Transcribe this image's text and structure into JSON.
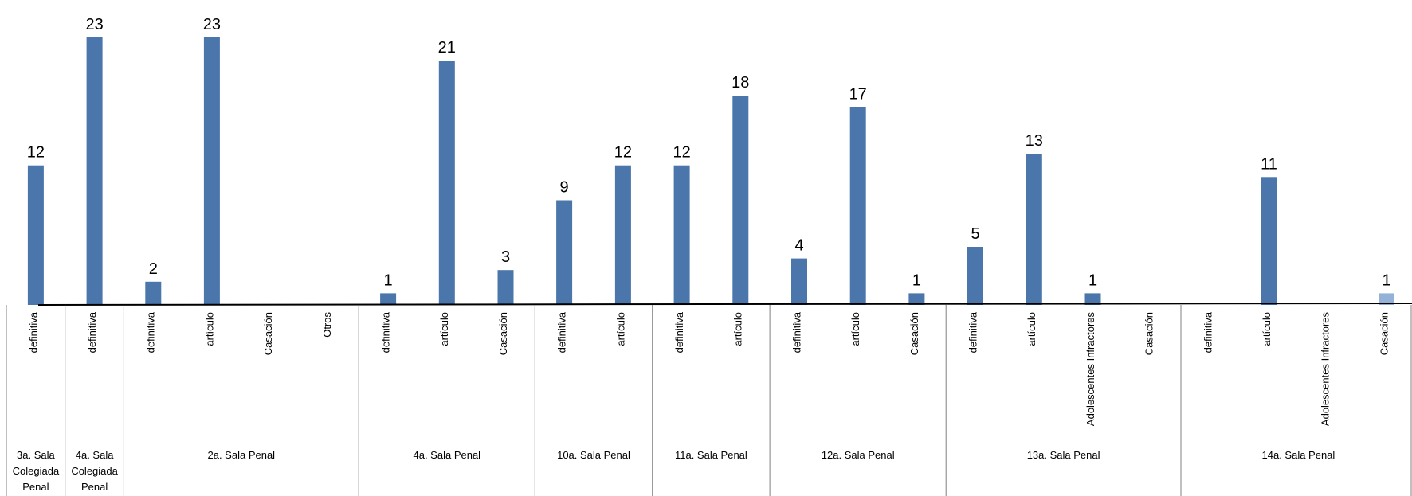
{
  "chart_data": {
    "type": "bar",
    "title": "",
    "xlabel": "",
    "ylabel": "",
    "ylim": [
      0,
      23
    ],
    "grid": false,
    "legend": "none",
    "colors": {
      "bar": "#4a76ab",
      "bar_highlight": "#94b1d8",
      "axis": "#000000",
      "divider": "#808080"
    },
    "categories": [
      "definitiva",
      "definitiva",
      "definitiva",
      "artículo",
      "Casación",
      "Otros",
      "definitiva",
      "artículo",
      "Casación",
      "definitiva",
      "artículo",
      "definitiva",
      "artículo",
      "definitiva",
      "artículo",
      "Casación",
      "definitiva",
      "artículo",
      "Adolescentes Infractores",
      "Casación",
      "definitiva",
      "artículo",
      "Adolescentes Infractores",
      "Casación"
    ],
    "values": [
      12,
      23,
      2,
      23,
      null,
      null,
      1,
      21,
      3,
      9,
      12,
      12,
      18,
      4,
      17,
      1,
      5,
      13,
      1,
      null,
      null,
      11,
      null,
      1
    ],
    "highlight_index": 23,
    "groups": [
      {
        "lines": [
          "3a. Sala",
          "Colegiada",
          "Penal"
        ],
        "start": 0,
        "count": 1
      },
      {
        "lines": [
          "4a. Sala",
          "Colegiada",
          "Penal"
        ],
        "start": 1,
        "count": 1
      },
      {
        "lines": [
          "2a. Sala Penal"
        ],
        "start": 2,
        "count": 4
      },
      {
        "lines": [
          "4a. Sala Penal"
        ],
        "start": 6,
        "count": 3
      },
      {
        "lines": [
          "10a. Sala Penal"
        ],
        "start": 9,
        "count": 2
      },
      {
        "lines": [
          "11a. Sala Penal"
        ],
        "start": 11,
        "count": 2
      },
      {
        "lines": [
          "12a. Sala Penal"
        ],
        "start": 13,
        "count": 3
      },
      {
        "lines": [
          "13a. Sala Penal"
        ],
        "start": 16,
        "count": 4
      },
      {
        "lines": [
          "14a. Sala Penal"
        ],
        "start": 20,
        "count": 4
      }
    ]
  }
}
